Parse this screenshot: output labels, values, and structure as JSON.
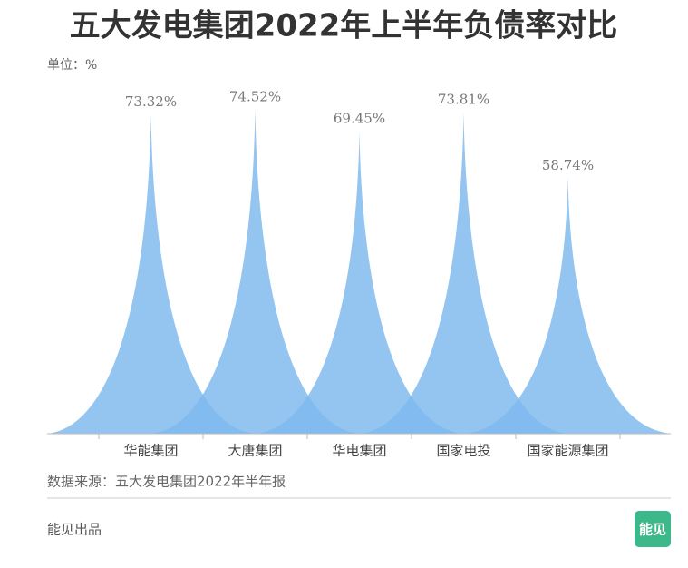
{
  "chart_data": {
    "type": "peak",
    "title": "五大发电集团2022年上半年负债率对比",
    "unit_label": "单位：%",
    "categories": [
      "华能集团",
      "大唐集团",
      "华电集团",
      "国家电投",
      "国家能源集团"
    ],
    "values": [
      73.32,
      74.52,
      69.45,
      73.81,
      58.74
    ],
    "value_labels": [
      "73.32%",
      "74.52%",
      "69.45%",
      "73.81%",
      "58.74%"
    ],
    "color": "#7db8ee",
    "source": "数据来源：五大发电集团2022年半年报",
    "footer": "能见出品",
    "logo": "能见"
  }
}
